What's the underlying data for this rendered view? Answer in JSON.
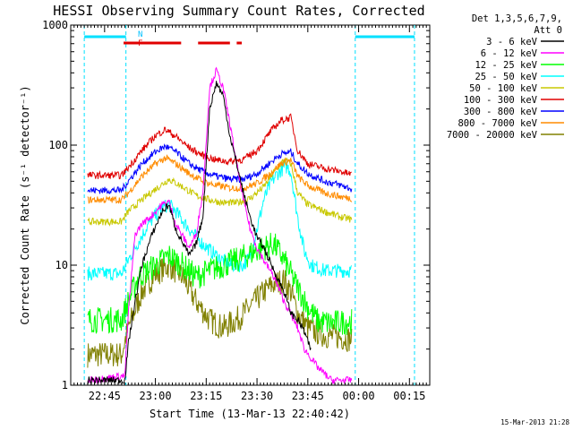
{
  "chart_data": {
    "type": "line",
    "title": "HESSI Observing Summary Count Rates, Corrected",
    "xlabel": "Start Time (13-Mar-13 22:40:42)",
    "ylabel": "Corrected Count Rate (s⁻¹ detector⁻¹)",
    "y_scale": "log",
    "ylim": [
      1,
      1000
    ],
    "x_range_minutes": [
      0,
      58
    ],
    "y_ticks": [
      "1",
      "10",
      "100",
      "1000"
    ],
    "x_ticks": [
      {
        "label": "22:45",
        "t": 5
      },
      {
        "label": "23:00",
        "t": 20
      },
      {
        "label": "23:15",
        "t": 35
      },
      {
        "label": "23:30",
        "t": 50
      },
      {
        "label": "23:45",
        "t": 65
      },
      {
        "label": "00:00",
        "t": 80
      },
      {
        "label": "00:15",
        "t": 95
      }
    ],
    "legend_header": [
      "Det 1,3,5,6,7,9,",
      "Att 0"
    ],
    "legend_position": "right",
    "footer_date": "15-Mar-2013 21:28",
    "flags": [
      {
        "label": "N",
        "color": "#00c0ff"
      },
      {
        "label": "F",
        "color": "#e00000"
      }
    ],
    "night_periods": [
      [
        -1,
        11.3
      ],
      [
        79.0,
        96.5
      ]
    ],
    "flare_periods": [
      [
        10.6,
        27.6
      ],
      [
        32.6,
        42.0
      ],
      [
        44.0,
        45.5
      ]
    ],
    "series": [
      {
        "name": "3 - 6 keV",
        "color": "#000000",
        "points": [
          [
            0,
            1.1
          ],
          [
            11,
            1.1
          ],
          [
            12,
            2.2
          ],
          [
            14,
            5
          ],
          [
            16,
            10
          ],
          [
            19,
            18
          ],
          [
            22,
            28
          ],
          [
            24,
            32
          ],
          [
            26,
            20
          ],
          [
            30,
            12
          ],
          [
            32,
            15
          ],
          [
            34,
            25
          ],
          [
            36,
            200
          ],
          [
            38,
            330
          ],
          [
            40,
            260
          ],
          [
            42,
            120
          ],
          [
            44,
            70
          ],
          [
            46,
            40
          ],
          [
            48,
            25
          ],
          [
            50,
            17
          ],
          [
            52,
            14
          ],
          [
            55,
            9
          ],
          [
            58,
            6
          ],
          [
            60,
            4
          ],
          [
            62,
            3.5
          ],
          [
            64,
            2.8
          ],
          [
            66,
            1.9
          ]
        ]
      },
      {
        "name": "6 - 12 keV",
        "color": "#ff00ff",
        "points": [
          [
            0,
            1.1
          ],
          [
            11,
            1.2
          ],
          [
            12,
            4
          ],
          [
            14,
            18
          ],
          [
            16,
            22
          ],
          [
            19,
            26
          ],
          [
            22,
            32
          ],
          [
            24,
            34
          ],
          [
            26,
            22
          ],
          [
            30,
            14
          ],
          [
            32,
            18
          ],
          [
            34,
            40
          ],
          [
            36,
            300
          ],
          [
            38,
            420
          ],
          [
            40,
            300
          ],
          [
            42,
            150
          ],
          [
            44,
            70
          ],
          [
            46,
            35
          ],
          [
            48,
            20
          ],
          [
            50,
            14
          ],
          [
            52,
            11
          ],
          [
            55,
            8
          ],
          [
            58,
            5
          ],
          [
            62,
            3
          ],
          [
            64,
            2
          ],
          [
            68,
            1.4
          ],
          [
            72,
            1.1
          ],
          [
            78,
            1.1
          ]
        ]
      },
      {
        "name": "12 - 25 keV",
        "color": "#00ff00",
        "points": [
          [
            0,
            3.5
          ],
          [
            10,
            3.5
          ],
          [
            12,
            5
          ],
          [
            15,
            8
          ],
          [
            20,
            10
          ],
          [
            24,
            12
          ],
          [
            28,
            10
          ],
          [
            32,
            8
          ],
          [
            36,
            9
          ],
          [
            40,
            10
          ],
          [
            44,
            11
          ],
          [
            48,
            12.5
          ],
          [
            52,
            14
          ],
          [
            55,
            15
          ],
          [
            58,
            11
          ],
          [
            62,
            6.5
          ],
          [
            65,
            4.5
          ],
          [
            68,
            3.4
          ],
          [
            72,
            3.3
          ],
          [
            78,
            3.4
          ]
        ]
      },
      {
        "name": "25 - 50 keV",
        "color": "#00ffff",
        "points": [
          [
            0,
            8.5
          ],
          [
            10,
            8.5
          ],
          [
            12,
            11
          ],
          [
            14,
            14
          ],
          [
            18,
            22
          ],
          [
            20,
            26
          ],
          [
            22,
            30
          ],
          [
            24,
            32
          ],
          [
            26,
            28
          ],
          [
            30,
            20
          ],
          [
            34,
            15
          ],
          [
            38,
            12
          ],
          [
            42,
            10
          ],
          [
            46,
            10
          ],
          [
            48,
            12
          ],
          [
            50,
            20
          ],
          [
            52,
            35
          ],
          [
            54,
            48
          ],
          [
            56,
            58
          ],
          [
            58,
            65
          ],
          [
            59,
            66
          ],
          [
            60,
            60
          ],
          [
            62,
            25
          ],
          [
            64,
            13
          ],
          [
            66,
            10
          ],
          [
            70,
            9
          ],
          [
            75,
            9
          ],
          [
            78,
            9
          ]
        ]
      },
      {
        "name": "50 - 100 keV",
        "color": "#c8c800",
        "points": [
          [
            0,
            23
          ],
          [
            10,
            23
          ],
          [
            12,
            28
          ],
          [
            16,
            35
          ],
          [
            20,
            43
          ],
          [
            24,
            52
          ],
          [
            28,
            45
          ],
          [
            32,
            38
          ],
          [
            36,
            35
          ],
          [
            40,
            33
          ],
          [
            44,
            33
          ],
          [
            48,
            36
          ],
          [
            52,
            45
          ],
          [
            55,
            60
          ],
          [
            58,
            75
          ],
          [
            60,
            70
          ],
          [
            62,
            40
          ],
          [
            65,
            32
          ],
          [
            70,
            28
          ],
          [
            75,
            25
          ],
          [
            78,
            24
          ]
        ]
      },
      {
        "name": "100 - 300 keV",
        "color": "#e00000",
        "points": [
          [
            0,
            56
          ],
          [
            10,
            56
          ],
          [
            12,
            65
          ],
          [
            16,
            90
          ],
          [
            20,
            120
          ],
          [
            23,
            135
          ],
          [
            26,
            118
          ],
          [
            30,
            95
          ],
          [
            34,
            82
          ],
          [
            38,
            75
          ],
          [
            42,
            73
          ],
          [
            46,
            76
          ],
          [
            50,
            90
          ],
          [
            54,
            130
          ],
          [
            57,
            160
          ],
          [
            60,
            170
          ],
          [
            62,
            90
          ],
          [
            65,
            70
          ],
          [
            70,
            64
          ],
          [
            75,
            60
          ],
          [
            78,
            57
          ]
        ]
      },
      {
        "name": "300 - 800 keV",
        "color": "#0000ff",
        "points": [
          [
            0,
            42
          ],
          [
            10,
            42
          ],
          [
            12,
            50
          ],
          [
            16,
            70
          ],
          [
            20,
            88
          ],
          [
            23,
            98
          ],
          [
            26,
            88
          ],
          [
            30,
            70
          ],
          [
            34,
            60
          ],
          [
            38,
            55
          ],
          [
            42,
            52
          ],
          [
            46,
            52
          ],
          [
            50,
            58
          ],
          [
            54,
            72
          ],
          [
            57,
            84
          ],
          [
            60,
            88
          ],
          [
            62,
            70
          ],
          [
            65,
            58
          ],
          [
            70,
            50
          ],
          [
            75,
            46
          ],
          [
            78,
            43
          ]
        ]
      },
      {
        "name": "800 - 7000 keV",
        "color": "#ff8c00",
        "points": [
          [
            0,
            35
          ],
          [
            10,
            35
          ],
          [
            12,
            40
          ],
          [
            16,
            55
          ],
          [
            20,
            70
          ],
          [
            23,
            78
          ],
          [
            26,
            70
          ],
          [
            30,
            58
          ],
          [
            34,
            50
          ],
          [
            38,
            46
          ],
          [
            42,
            44
          ],
          [
            46,
            44
          ],
          [
            50,
            48
          ],
          [
            54,
            58
          ],
          [
            57,
            70
          ],
          [
            60,
            75
          ],
          [
            62,
            55
          ],
          [
            65,
            46
          ],
          [
            70,
            40
          ],
          [
            75,
            37
          ],
          [
            78,
            36
          ]
        ]
      },
      {
        "name": "7000 - 20000 keV",
        "color": "#808000",
        "points": [
          [
            0,
            1.8
          ],
          [
            10,
            1.8
          ],
          [
            12,
            3
          ],
          [
            16,
            6
          ],
          [
            20,
            8.5
          ],
          [
            24,
            10
          ],
          [
            28,
            8
          ],
          [
            32,
            5
          ],
          [
            36,
            3.5
          ],
          [
            40,
            3
          ],
          [
            44,
            3.5
          ],
          [
            48,
            4.5
          ],
          [
            52,
            6
          ],
          [
            55,
            7
          ],
          [
            58,
            7.5
          ],
          [
            60,
            6
          ],
          [
            62,
            4
          ],
          [
            65,
            3
          ],
          [
            70,
            2.6
          ],
          [
            75,
            2.5
          ],
          [
            78,
            2.4
          ]
        ]
      }
    ]
  }
}
